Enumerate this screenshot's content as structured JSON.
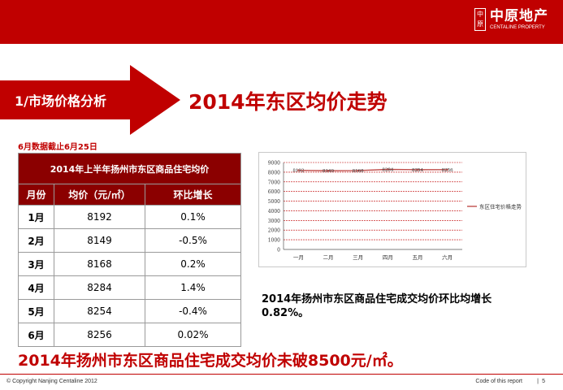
{
  "brand": {
    "seal": "中\n原",
    "name_cn": "中原地产",
    "name_en": "CENTALINE PROPERTY"
  },
  "section": {
    "label": "1/市场价格分析"
  },
  "page": {
    "title": "2014年东区均价走势"
  },
  "note": "6月数据截止6月25日",
  "table": {
    "caption": "2014年上半年扬州市东区商品住宅均价",
    "headers": [
      "月份",
      "均价（元/㎡）",
      "环比增长"
    ],
    "rows": [
      {
        "month": "1月",
        "price": "8192",
        "change": "0.1%"
      },
      {
        "month": "2月",
        "price": "8149",
        "change": "-0.5%"
      },
      {
        "month": "3月",
        "price": "8168",
        "change": "0.2%"
      },
      {
        "month": "4月",
        "price": "8284",
        "change": "1.4%"
      },
      {
        "month": "5月",
        "price": "8254",
        "change": "-0.4%"
      },
      {
        "month": "6月",
        "price": "8256",
        "change": "0.02%"
      }
    ]
  },
  "chart_data": {
    "type": "line",
    "categories": [
      "一月",
      "二月",
      "三月",
      "四月",
      "五月",
      "六月"
    ],
    "series": [
      {
        "name": "东区住宅价格走势",
        "values": [
          8192,
          8149,
          8168,
          8284,
          8254,
          8256
        ]
      }
    ],
    "data_labels": [
      "8192",
      "8149",
      "8168",
      "8284",
      "8254",
      "8256"
    ],
    "yticks": [
      "0",
      "1000",
      "2000",
      "3000",
      "4000",
      "5000",
      "6000",
      "7000",
      "8000",
      "9000"
    ],
    "ylim": [
      0,
      9000
    ],
    "grid": true,
    "legend": "right",
    "line_color": "#c0504d"
  },
  "summary": "2014年扬州市东区商品住宅成交均价环比均增长0.82%。",
  "conclusion": "2014年扬州市东区商品住宅成交均价未破8500元/㎡。",
  "footer": {
    "copyright": "© Copyright  Nanjing Centaline 2012",
    "code": "Code of this report",
    "separator": "|",
    "page_number": "5"
  },
  "colors": {
    "brand_red": "#c00000",
    "table_header": "#8b0000",
    "arrow_red": "#c00000"
  }
}
